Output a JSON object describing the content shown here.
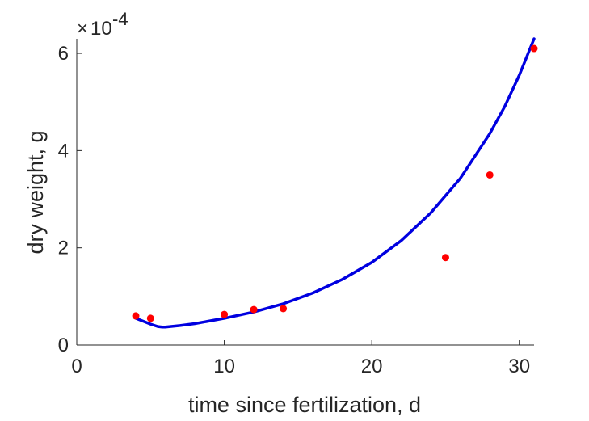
{
  "chart_data": {
    "type": "scatter",
    "xlabel": "time since fertilization, d",
    "ylabel": "dry weight, g",
    "xlim": [
      0,
      31
    ],
    "ylim": [
      0,
      6.3
    ],
    "y_multiplier": {
      "base": "10",
      "exponent": "-4"
    },
    "x_ticks": [
      0,
      10,
      20,
      30
    ],
    "x_tick_labels": [
      "0",
      "10",
      "20",
      "30"
    ],
    "y_ticks": [
      0,
      2,
      4,
      6
    ],
    "y_tick_labels": [
      "0",
      "2",
      "4",
      "6"
    ],
    "grid": false,
    "legend": "none",
    "series": [
      {
        "kind": "points",
        "color": "#ff0000",
        "x": [
          4,
          5,
          10,
          12,
          14,
          25,
          28,
          31
        ],
        "y": [
          0.6,
          0.55,
          0.63,
          0.73,
          0.75,
          1.8,
          3.5,
          6.1
        ]
      },
      {
        "kind": "line",
        "color": "#0000e0",
        "x": [
          4,
          4.5,
          5,
          5.5,
          5.8,
          6,
          7,
          8,
          10,
          12,
          14,
          16,
          18,
          20,
          22,
          24,
          26,
          28,
          29,
          30,
          31
        ],
        "y": [
          0.55,
          0.49,
          0.43,
          0.38,
          0.37,
          0.37,
          0.4,
          0.44,
          0.55,
          0.68,
          0.85,
          1.07,
          1.35,
          1.7,
          2.15,
          2.72,
          3.43,
          4.35,
          4.9,
          5.55,
          6.3
        ]
      }
    ]
  }
}
